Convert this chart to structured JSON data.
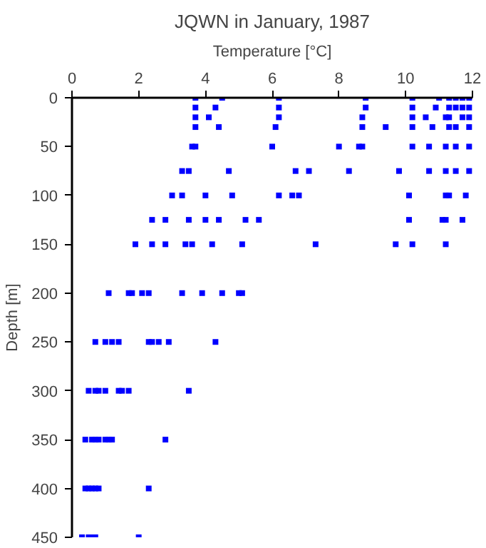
{
  "chart_data": {
    "type": "scatter",
    "title": "JQWN in January, 1987",
    "xlabel": "Temperature [°C]",
    "ylabel": "Depth [m]",
    "xlim": [
      0,
      12
    ],
    "xticks": [
      0,
      2,
      4,
      6,
      8,
      10,
      12
    ],
    "ylim": [
      450,
      0
    ],
    "yticks": [
      0,
      50,
      100,
      150,
      200,
      250,
      300,
      350,
      400,
      450
    ],
    "grid": false,
    "marker": "square",
    "series": [
      {
        "color": "#0000ff",
        "x": [
          3.7,
          4.5,
          6.2,
          8.8,
          10.2,
          11.0,
          11.3,
          11.5,
          11.7,
          11.9,
          3.7,
          4.3,
          6.2,
          8.8,
          10.2,
          10.9,
          11.3,
          11.5,
          11.7,
          11.9,
          3.7,
          4.1,
          6.2,
          8.7,
          10.2,
          10.6,
          11.2,
          11.3,
          11.7,
          11.9,
          3.7,
          4.4,
          6.1,
          8.7,
          9.4,
          10.2,
          10.8,
          11.3,
          11.5,
          11.9,
          3.6,
          3.7,
          6.0,
          8.0,
          8.6,
          8.7,
          10.2,
          10.7,
          11.2,
          11.5,
          11.9,
          3.3,
          3.5,
          4.7,
          6.7,
          7.1,
          8.3,
          9.8,
          10.7,
          11.2,
          11.5,
          11.9,
          3.0,
          3.3,
          4.0,
          4.8,
          6.2,
          6.6,
          6.8,
          10.1,
          11.2,
          11.3,
          11.8,
          2.4,
          2.8,
          3.5,
          4.0,
          4.4,
          5.2,
          5.6,
          10.1,
          11.1,
          11.2,
          11.7,
          1.9,
          2.4,
          2.8,
          3.4,
          3.6,
          4.2,
          5.1,
          7.3,
          9.7,
          10.2,
          11.2,
          1.1,
          1.7,
          1.8,
          2.1,
          2.3,
          3.3,
          3.9,
          4.5,
          5.0,
          5.1,
          0.7,
          1.0,
          1.2,
          1.4,
          2.3,
          2.4,
          2.6,
          2.9,
          4.3,
          0.5,
          0.7,
          0.8,
          1.0,
          1.4,
          1.5,
          1.7,
          3.5,
          0.4,
          0.6,
          0.7,
          0.8,
          1.0,
          1.1,
          1.2,
          2.8,
          0.4,
          0.5,
          0.6,
          0.7,
          0.8,
          2.3,
          0.3,
          0.5,
          0.6,
          0.7,
          2.0
        ],
        "values": [
          0,
          0,
          0,
          0,
          0,
          0,
          0,
          0,
          0,
          0,
          10,
          10,
          10,
          10,
          10,
          10,
          10,
          10,
          10,
          10,
          20,
          20,
          20,
          20,
          20,
          20,
          20,
          20,
          20,
          20,
          30,
          30,
          30,
          30,
          30,
          30,
          30,
          30,
          30,
          30,
          50,
          50,
          50,
          50,
          50,
          50,
          50,
          50,
          50,
          50,
          50,
          75,
          75,
          75,
          75,
          75,
          75,
          75,
          75,
          75,
          75,
          75,
          100,
          100,
          100,
          100,
          100,
          100,
          100,
          100,
          100,
          100,
          100,
          125,
          125,
          125,
          125,
          125,
          125,
          125,
          125,
          125,
          125,
          125,
          150,
          150,
          150,
          150,
          150,
          150,
          150,
          150,
          150,
          150,
          150,
          200,
          200,
          200,
          200,
          200,
          200,
          200,
          200,
          200,
          200,
          250,
          250,
          250,
          250,
          250,
          250,
          250,
          250,
          250,
          300,
          300,
          300,
          300,
          300,
          300,
          300,
          300,
          350,
          350,
          350,
          350,
          350,
          350,
          350,
          350,
          400,
          400,
          400,
          400,
          400,
          400,
          450,
          450,
          450,
          450,
          450
        ]
      }
    ]
  }
}
